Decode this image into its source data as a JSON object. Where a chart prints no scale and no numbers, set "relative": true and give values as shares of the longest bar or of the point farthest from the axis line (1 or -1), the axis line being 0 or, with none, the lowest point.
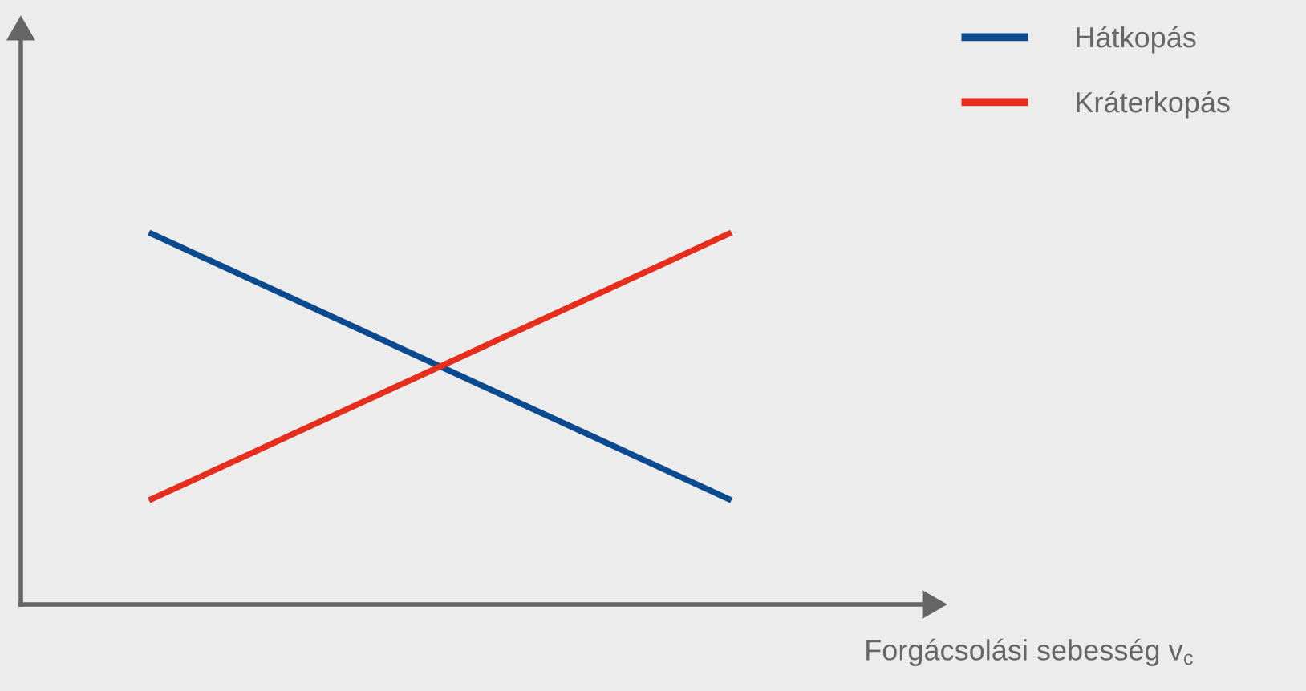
{
  "chart_data": {
    "type": "line",
    "relative": true,
    "xlabel": "Forgácsolási sebesség v$_{c}$",
    "categories": [
      null,
      null
    ],
    "series": [
      {
        "name": "Hátkopás",
        "color": "#0b4a8f",
        "values": [
          1,
          0.28
        ]
      },
      {
        "name": "Kráterkopás",
        "color": "#e62e1e",
        "values": [
          0.28,
          1
        ]
      }
    ],
    "legend": "top right",
    "marker": "none",
    "line_style": "solid"
  }
}
